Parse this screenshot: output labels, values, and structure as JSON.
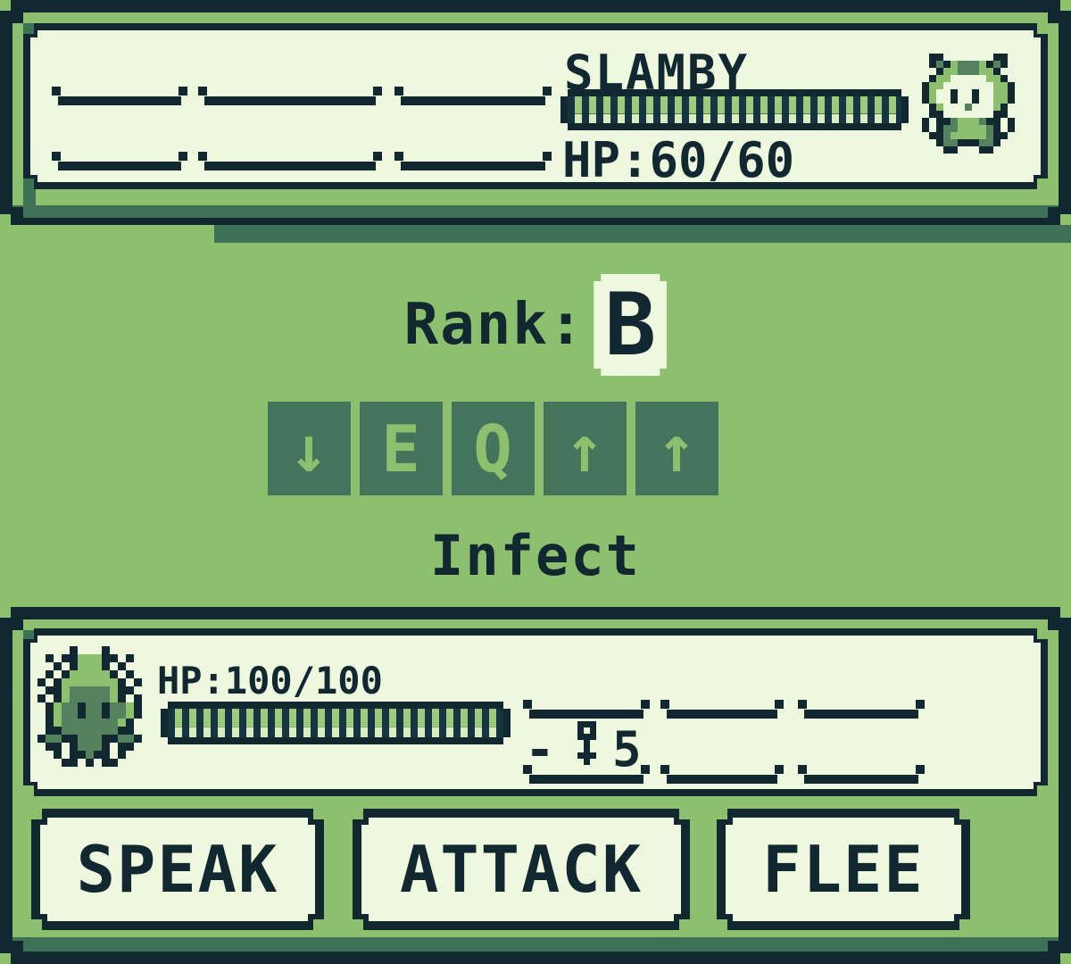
{
  "colors": {
    "ink": "#112831",
    "background_green": "#8cc06f",
    "shade_green": "#3f7157",
    "cream": "#eef8de",
    "keycap_green": "#44755c",
    "keycap_glyph_green": "#8cc06f",
    "hp_stripe_light": "#9ccb7e",
    "hp_stripe_pale": "#d9edc1"
  },
  "enemy": {
    "name": "SLAMBY",
    "hp_text": "HP:60/60",
    "hp_percent": 100
  },
  "rank": {
    "label": "Rank:",
    "value": "B"
  },
  "combo_keys": [
    {
      "name": "down-arrow-key",
      "glyph": "↓"
    },
    {
      "name": "e-key",
      "glyph": "E"
    },
    {
      "name": "q-key",
      "glyph": "Q"
    },
    {
      "name": "up-arrow-key-1",
      "glyph": "↑"
    },
    {
      "name": "up-arrow-key-2",
      "glyph": "↑"
    }
  ],
  "move": {
    "name": "Infect"
  },
  "player": {
    "hp_text": "HP:100/100",
    "hp_percent": 100,
    "cost_prefix": "-",
    "cost_amount": "5"
  },
  "actions": [
    {
      "label": "SPEAK"
    },
    {
      "label": "ATTACK"
    },
    {
      "label": "FLEE"
    }
  ],
  "sprite_palette": {
    "K": "#112831",
    "L": "#8cc06f",
    "M": "#55825e",
    "C": "#eef8de"
  },
  "sprites": {
    "enemy": [
      ".KK.......KK.",
      ".KMKLMMMLKMK.",
      "..KLLMMMLLK..",
      ".KLLCCCCCLLK.",
      "KLLCCCCCCCLLK",
      "KLCCKCCKCCLLK",
      "KLCCKCCKCCLLK",
      ".KLCCCMCCCLK.",
      ".KKCCCCCCCKK.",
      "KCKKMLLLMKKCK",
      "KCKMMLLLLMKCK",
      ".KKMLLLLLMKK.",
      "..KMMKKKMMK..",
      "...KK...KK..."
    ],
    "player": [
      "....K...K....",
      ".K.KKLLLKK.K.",
      "..K.KLLLK.K..",
      ".K.KLLLLLK.K.",
      "K.KLLLLLLLK.K",
      ".KKLMMMMMLKK.",
      "K.KLMMMMMLK.K",
      ".KLMMKMMKMMLK",
      ".KLMMKMMKMMLK",
      ".KLMMMMMMMLK.",
      ".KKMMMMMMMKK.",
      "KMMKKMMMKKMMK",
      ".KK.KMMMK.KK.",
      "..K.KKMKK.K..",
      "...KK.K.KK..."
    ],
    "key": [
      ".KKK.",
      ".K.K.",
      ".KKK.",
      "..K..",
      "..K..",
      ".KKK.",
      "..K.."
    ]
  }
}
